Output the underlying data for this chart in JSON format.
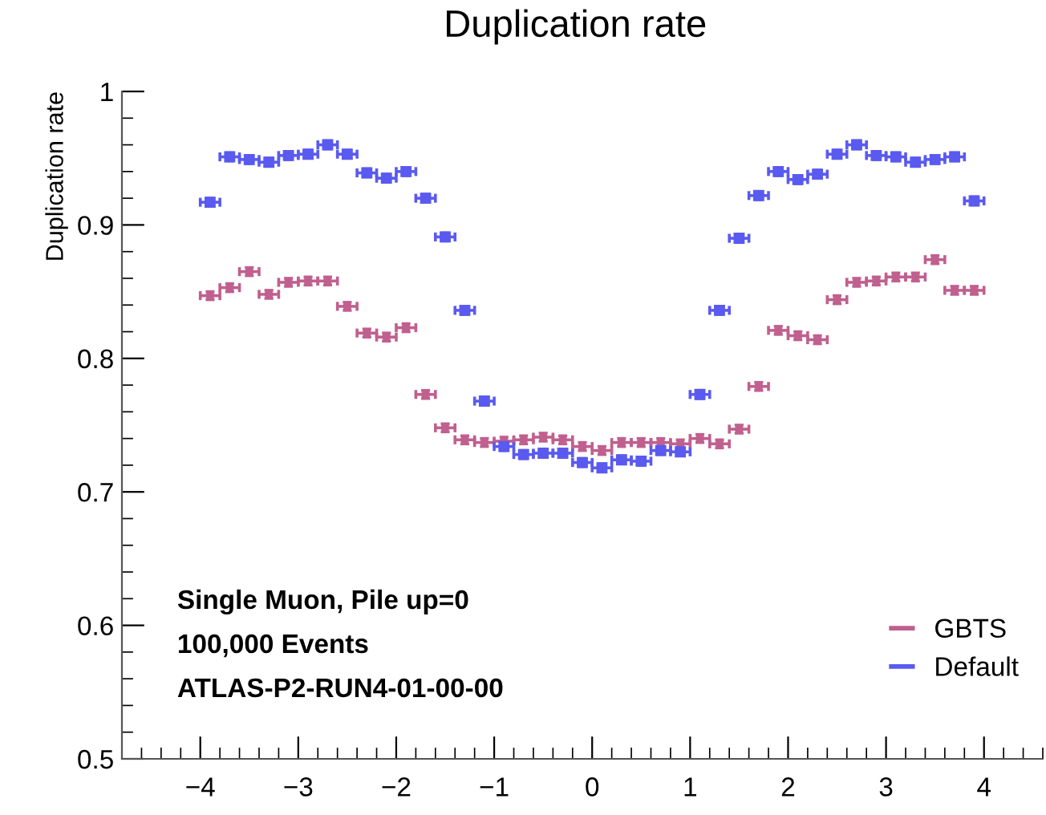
{
  "chart_data": {
    "type": "scatter",
    "title": "Duplication rate",
    "ylabel": "Duplication rate",
    "x": [
      -3.9,
      -3.7,
      -3.5,
      -3.3,
      -3.1,
      -2.9,
      -2.7,
      -2.5,
      -2.3,
      -2.1,
      -1.9,
      -1.7,
      -1.5,
      -1.3,
      -1.1,
      -0.9,
      -0.7,
      -0.5,
      -0.3,
      -0.1,
      0.1,
      0.3,
      0.5,
      0.7,
      0.9,
      1.1,
      1.3,
      1.5,
      1.7,
      1.9,
      2.1,
      2.3,
      2.5,
      2.7,
      2.9,
      3.1,
      3.3,
      3.5,
      3.7,
      3.9
    ],
    "series": [
      {
        "name": "GBTS",
        "color": "#c0608f",
        "marker": "circle",
        "errors": [
          0.003,
          0.003,
          0.003,
          0.003,
          0.003,
          0.003,
          0.003,
          0.003,
          0.003,
          0.003,
          0.003,
          0.003,
          0.003,
          0.003,
          0.003,
          0.003,
          0.003,
          0.003,
          0.003,
          0.003,
          0.003,
          0.003,
          0.003,
          0.003,
          0.003,
          0.003,
          0.003,
          0.003,
          0.003,
          0.003,
          0.003,
          0.003,
          0.003,
          0.003,
          0.003,
          0.003,
          0.003,
          0.003,
          0.003,
          0.003
        ],
        "xerrors": [
          0.1,
          0.1,
          0.1,
          0.1,
          0.1,
          0.1,
          0.1,
          0.1,
          0.1,
          0.1,
          0.1,
          0.1,
          0.1,
          0.1,
          0.1,
          0.1,
          0.1,
          0.1,
          0.1,
          0.1,
          0.1,
          0.1,
          0.1,
          0.1,
          0.1,
          0.1,
          0.1,
          0.1,
          0.1,
          0.1,
          0.1,
          0.1,
          0.1,
          0.1,
          0.1,
          0.1,
          0.1,
          0.1,
          0.1,
          0.1
        ],
        "values": [
          0.847,
          0.853,
          0.865,
          0.848,
          0.857,
          0.858,
          0.858,
          0.839,
          0.819,
          0.816,
          0.823,
          0.773,
          0.748,
          0.739,
          0.737,
          0.738,
          0.739,
          0.741,
          0.739,
          0.734,
          0.731,
          0.737,
          0.737,
          0.737,
          0.736,
          0.74,
          0.736,
          0.747,
          0.779,
          0.821,
          0.817,
          0.814,
          0.844,
          0.857,
          0.858,
          0.861,
          0.861,
          0.874,
          0.851,
          0.851
        ]
      },
      {
        "name": "Default",
        "color": "#5a5af0",
        "marker": "square",
        "errors": [
          0.003,
          0.003,
          0.003,
          0.003,
          0.003,
          0.003,
          0.003,
          0.003,
          0.003,
          0.003,
          0.003,
          0.003,
          0.003,
          0.003,
          0.003,
          0.003,
          0.003,
          0.003,
          0.003,
          0.003,
          0.003,
          0.003,
          0.003,
          0.003,
          0.003,
          0.003,
          0.003,
          0.003,
          0.003,
          0.003,
          0.003,
          0.003,
          0.003,
          0.003,
          0.003,
          0.003,
          0.003,
          0.003,
          0.003,
          0.003
        ],
        "xerrors": [
          0.1,
          0.1,
          0.1,
          0.1,
          0.1,
          0.1,
          0.1,
          0.1,
          0.1,
          0.1,
          0.1,
          0.1,
          0.1,
          0.1,
          0.1,
          0.1,
          0.1,
          0.1,
          0.1,
          0.1,
          0.1,
          0.1,
          0.1,
          0.1,
          0.1,
          0.1,
          0.1,
          0.1,
          0.1,
          0.1,
          0.1,
          0.1,
          0.1,
          0.1,
          0.1,
          0.1,
          0.1,
          0.1,
          0.1,
          0.1
        ],
        "values": [
          0.917,
          0.951,
          0.949,
          0.947,
          0.952,
          0.953,
          0.96,
          0.953,
          0.939,
          0.935,
          0.94,
          0.92,
          0.891,
          0.836,
          0.768,
          0.734,
          0.728,
          0.729,
          0.729,
          0.722,
          0.718,
          0.724,
          0.723,
          0.731,
          0.73,
          0.773,
          0.836,
          0.89,
          0.922,
          0.94,
          0.934,
          0.938,
          0.953,
          0.96,
          0.952,
          0.951,
          0.947,
          0.949,
          0.951,
          0.918
        ]
      }
    ],
    "xlim": [
      -4.8,
      4.6
    ],
    "ylim": [
      0.5,
      1.0
    ],
    "xticks": [
      {
        "value": -4,
        "label": "−4"
      },
      {
        "value": -3,
        "label": "−3"
      },
      {
        "value": -2,
        "label": "−2"
      },
      {
        "value": -1,
        "label": "−1"
      },
      0,
      1,
      2,
      3,
      4
    ],
    "yticks": [
      0.5,
      0.6,
      0.7,
      0.8,
      0.9,
      1
    ],
    "annotations": [
      "Single Muon, Pile up=0",
      "100,000 Events",
      "ATLAS-P2-RUN4-01-00-00"
    ],
    "legend": "bottom right",
    "grid": false
  }
}
